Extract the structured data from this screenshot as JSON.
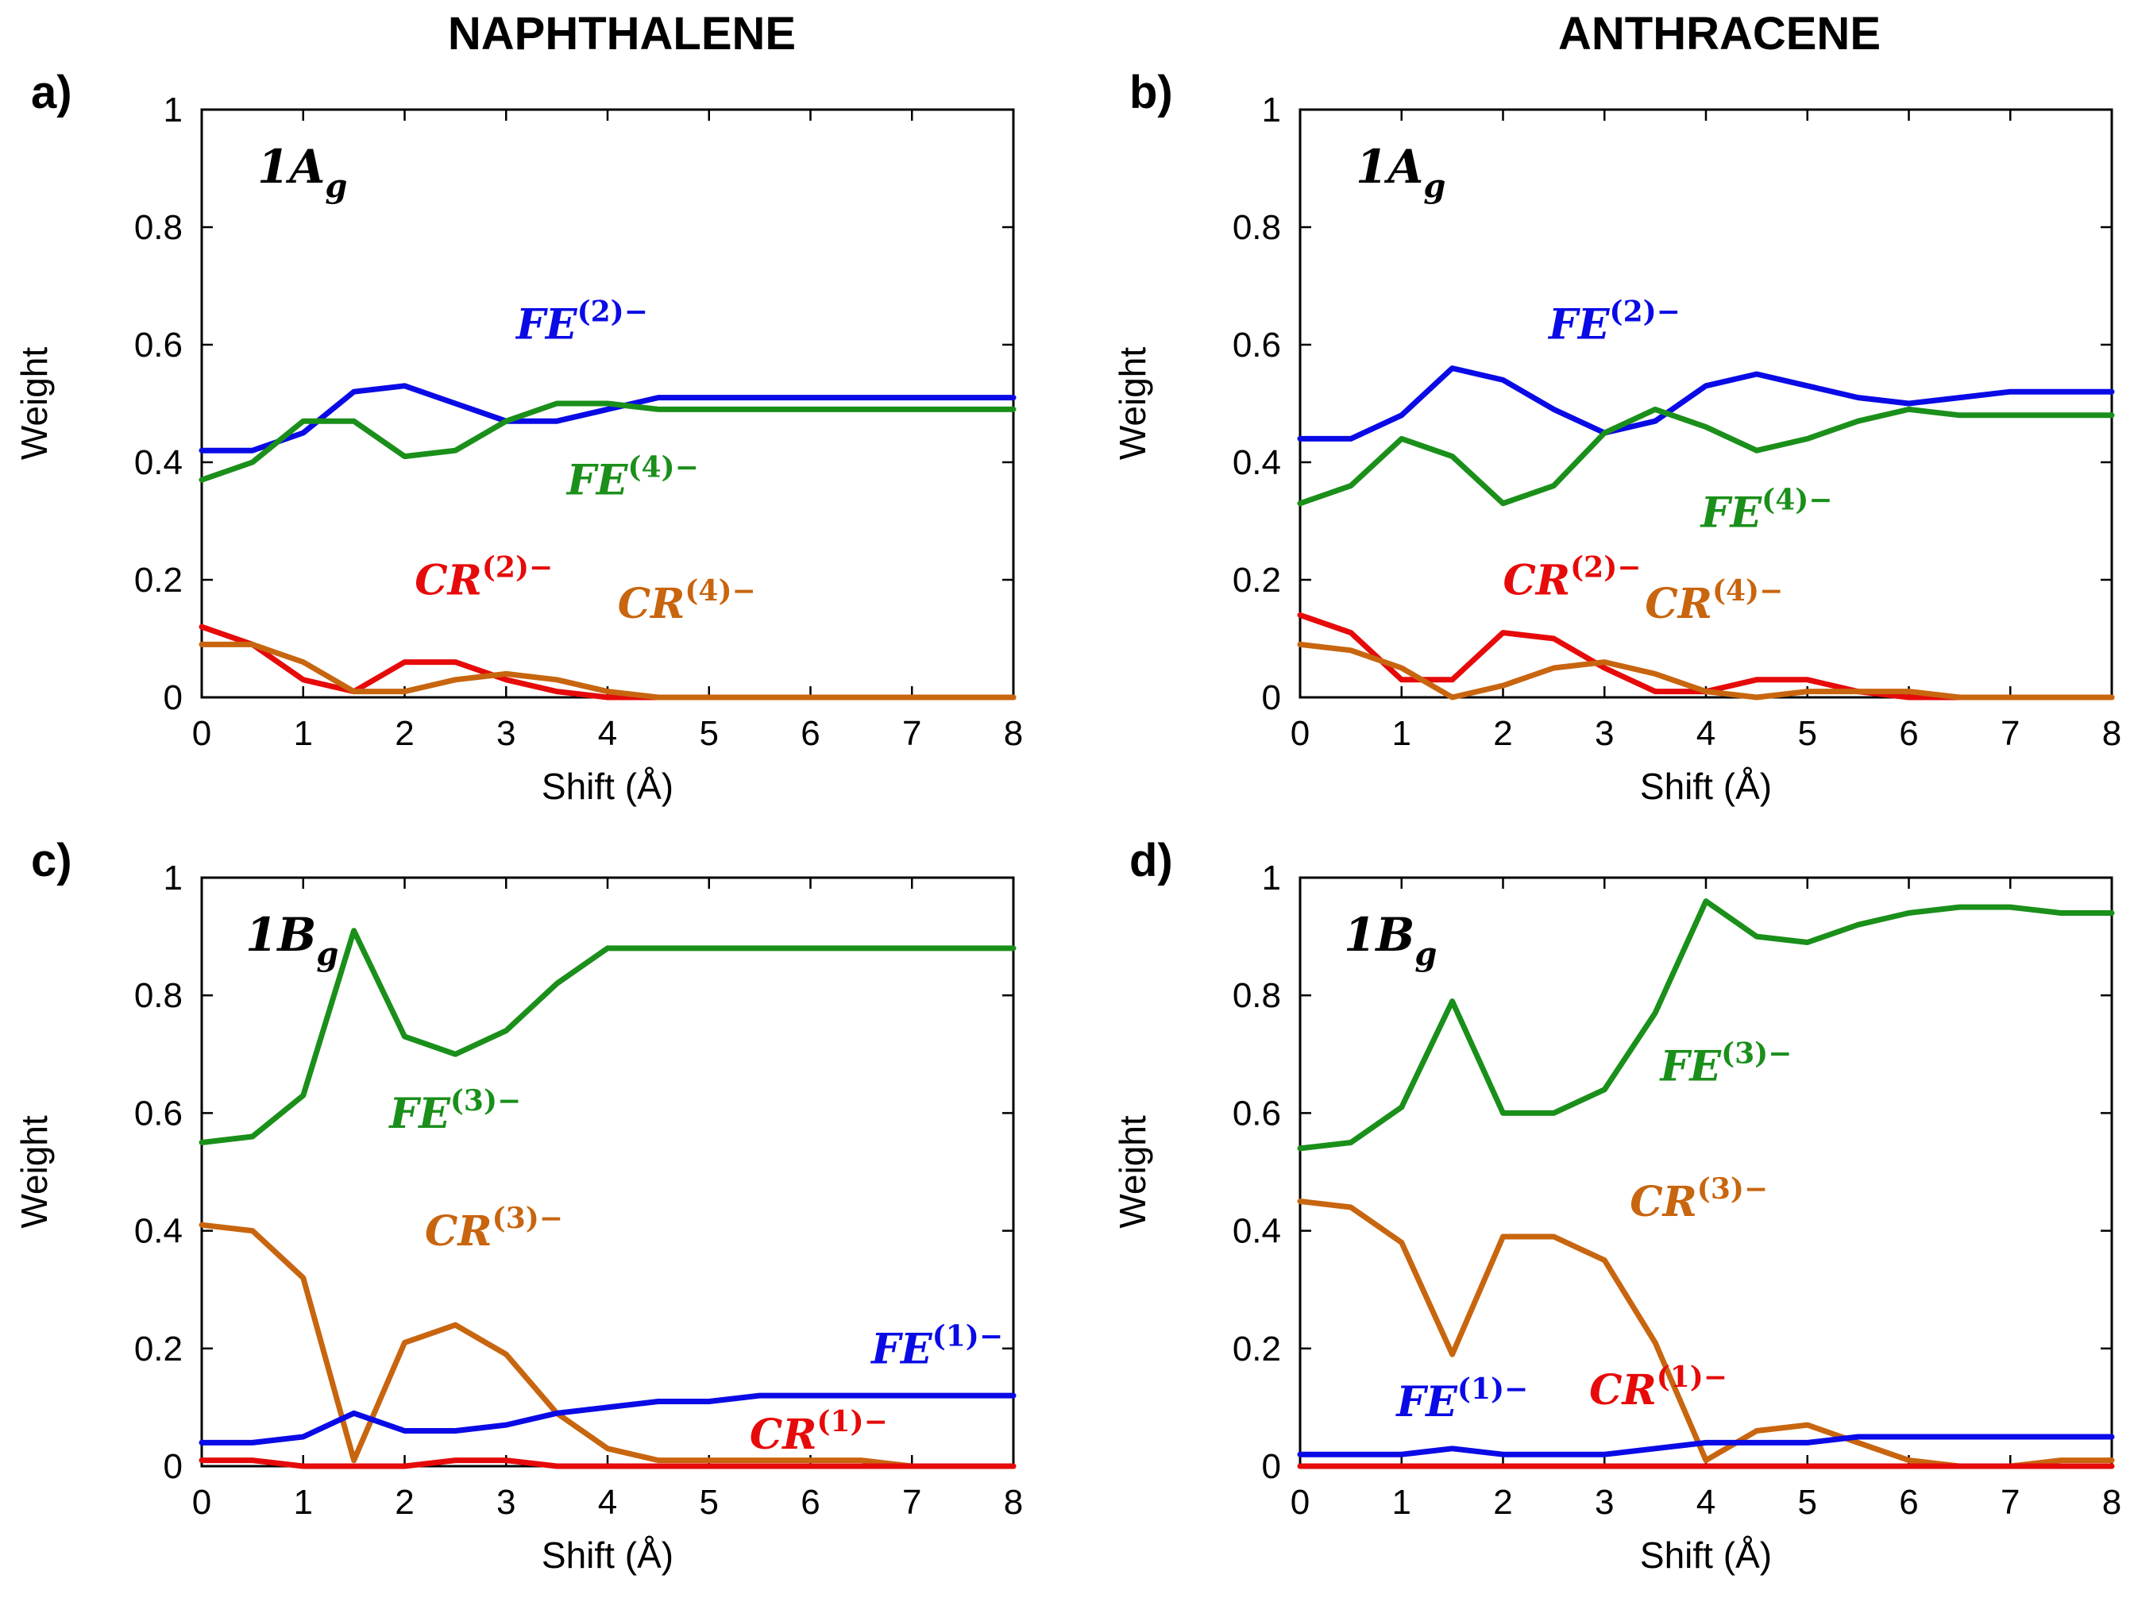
{
  "columns": [
    "NAPHTHALENE",
    "ANTHRACENE"
  ],
  "colors": {
    "FE2": "#0a0ae6",
    "FE4": "#1a8f1a",
    "CR2": "#e60a0a",
    "CR4": "#c8650f",
    "FE3": "#1a8f1a",
    "CR3": "#c8650f",
    "FE1": "#0a0ae6",
    "CR1": "#e60a0a"
  },
  "chart_data": [
    {
      "type": "line",
      "panel": "a)",
      "state": {
        "base": "1A",
        "sub": "g"
      },
      "xlabel": "Shift (Å)",
      "ylabel": "Weight",
      "xlim": [
        0,
        8
      ],
      "ylim": [
        0,
        1
      ],
      "xticks": [
        "0",
        "1",
        "2",
        "3",
        "4",
        "5",
        "6",
        "7",
        "8"
      ],
      "yticks": [
        "0",
        "0.2",
        "0.4",
        "0.6",
        "0.8",
        "1"
      ],
      "x": [
        0,
        0.5,
        1,
        1.5,
        2,
        2.5,
        3,
        3.5,
        4,
        4.5,
        5,
        5.5,
        6,
        6.5,
        7,
        7.5,
        8
      ],
      "series": [
        {
          "key": "FE2",
          "name": "FE(2)−",
          "base": "FE",
          "sup": "(2)−",
          "values": [
            0.42,
            0.42,
            0.45,
            0.52,
            0.53,
            0.5,
            0.47,
            0.47,
            0.49,
            0.51,
            0.51,
            0.51,
            0.51,
            0.51,
            0.51,
            0.51,
            0.51
          ]
        },
        {
          "key": "FE4",
          "name": "FE(4)−",
          "base": "FE",
          "sup": "(4)−",
          "values": [
            0.37,
            0.4,
            0.47,
            0.47,
            0.41,
            0.42,
            0.47,
            0.5,
            0.5,
            0.49,
            0.49,
            0.49,
            0.49,
            0.49,
            0.49,
            0.49,
            0.49
          ]
        },
        {
          "key": "CR2",
          "name": "CR(2)−",
          "base": "CR",
          "sup": "(2)−",
          "values": [
            0.12,
            0.09,
            0.03,
            0.01,
            0.06,
            0.06,
            0.03,
            0.01,
            0.0,
            0.0,
            0.0,
            0.0,
            0.0,
            0.0,
            0.0,
            0.0,
            0.0
          ]
        },
        {
          "key": "CR4",
          "name": "CR(4)−",
          "base": "CR",
          "sup": "(4)−",
          "values": [
            0.09,
            0.09,
            0.06,
            0.01,
            0.01,
            0.03,
            0.04,
            0.03,
            0.01,
            0.0,
            0.0,
            0.0,
            0.0,
            0.0,
            0.0,
            0.0,
            0.0
          ]
        }
      ]
    },
    {
      "type": "line",
      "panel": "b)",
      "state": {
        "base": "1A",
        "sub": "g"
      },
      "xlabel": "Shift (Å)",
      "ylabel": "Weight",
      "xlim": [
        0,
        8
      ],
      "ylim": [
        0,
        1
      ],
      "xticks": [
        "0",
        "1",
        "2",
        "3",
        "4",
        "5",
        "6",
        "7",
        "8"
      ],
      "yticks": [
        "0",
        "0.2",
        "0.4",
        "0.6",
        "0.8",
        "1"
      ],
      "x": [
        0,
        0.5,
        1,
        1.5,
        2,
        2.5,
        3,
        3.5,
        4,
        4.5,
        5,
        5.5,
        6,
        6.5,
        7,
        7.5,
        8
      ],
      "series": [
        {
          "key": "FE2",
          "name": "FE(2)−",
          "base": "FE",
          "sup": "(2)−",
          "values": [
            0.44,
            0.44,
            0.48,
            0.56,
            0.54,
            0.49,
            0.45,
            0.47,
            0.53,
            0.55,
            0.53,
            0.51,
            0.5,
            0.51,
            0.52,
            0.52,
            0.52
          ]
        },
        {
          "key": "FE4",
          "name": "FE(4)−",
          "base": "FE",
          "sup": "(4)−",
          "values": [
            0.33,
            0.36,
            0.44,
            0.41,
            0.33,
            0.36,
            0.45,
            0.49,
            0.46,
            0.42,
            0.44,
            0.47,
            0.49,
            0.48,
            0.48,
            0.48,
            0.48
          ]
        },
        {
          "key": "CR2",
          "name": "CR(2)−",
          "base": "CR",
          "sup": "(2)−",
          "values": [
            0.14,
            0.11,
            0.03,
            0.03,
            0.11,
            0.1,
            0.05,
            0.01,
            0.01,
            0.03,
            0.03,
            0.01,
            0.0,
            0.0,
            0.0,
            0.0,
            0.0
          ]
        },
        {
          "key": "CR4",
          "name": "CR(4)−",
          "base": "CR",
          "sup": "(4)−",
          "values": [
            0.09,
            0.08,
            0.05,
            0.0,
            0.02,
            0.05,
            0.06,
            0.04,
            0.01,
            0.0,
            0.01,
            0.01,
            0.01,
            0.0,
            0.0,
            0.0,
            0.0
          ]
        }
      ]
    },
    {
      "type": "line",
      "panel": "c)",
      "state": {
        "base": "1B",
        "sub": "g"
      },
      "xlabel": "Shift (Å)",
      "ylabel": "Weight",
      "xlim": [
        0,
        8
      ],
      "ylim": [
        0,
        1
      ],
      "xticks": [
        "0",
        "1",
        "2",
        "3",
        "4",
        "5",
        "6",
        "7",
        "8"
      ],
      "yticks": [
        "0",
        "0.2",
        "0.4",
        "0.6",
        "0.8",
        "1"
      ],
      "x": [
        0,
        0.5,
        1,
        1.5,
        2,
        2.5,
        3,
        3.5,
        4,
        4.5,
        5,
        5.5,
        6,
        6.5,
        7,
        7.5,
        8
      ],
      "series": [
        {
          "key": "FE3",
          "name": "FE(3)−",
          "base": "FE",
          "sup": "(3)−",
          "values": [
            0.55,
            0.56,
            0.63,
            0.91,
            0.73,
            0.7,
            0.74,
            0.82,
            0.88,
            0.88,
            0.88,
            0.88,
            0.88,
            0.88,
            0.88,
            0.88,
            0.88
          ]
        },
        {
          "key": "CR3",
          "name": "CR(3)−",
          "base": "CR",
          "sup": "(3)−",
          "values": [
            0.41,
            0.4,
            0.32,
            0.01,
            0.21,
            0.24,
            0.19,
            0.09,
            0.03,
            0.01,
            0.01,
            0.01,
            0.01,
            0.01,
            0.0,
            0.0,
            0.0
          ]
        },
        {
          "key": "FE1",
          "name": "FE(1)−",
          "base": "FE",
          "sup": "(1)−",
          "values": [
            0.04,
            0.04,
            0.05,
            0.09,
            0.06,
            0.06,
            0.07,
            0.09,
            0.1,
            0.11,
            0.11,
            0.12,
            0.12,
            0.12,
            0.12,
            0.12,
            0.12
          ]
        },
        {
          "key": "CR1",
          "name": "CR(1)−",
          "base": "CR",
          "sup": "(1)−",
          "values": [
            0.01,
            0.01,
            0.0,
            0.0,
            0.0,
            0.01,
            0.01,
            0.0,
            0.0,
            0.0,
            0.0,
            0.0,
            0.0,
            0.0,
            0.0,
            0.0,
            0.0
          ]
        }
      ]
    },
    {
      "type": "line",
      "panel": "d)",
      "state": {
        "base": "1B",
        "sub": "g"
      },
      "xlabel": "Shift (Å)",
      "ylabel": "Weight",
      "xlim": [
        0,
        8
      ],
      "ylim": [
        0,
        1
      ],
      "xticks": [
        "0",
        "1",
        "2",
        "3",
        "4",
        "5",
        "6",
        "7",
        "8"
      ],
      "yticks": [
        "0",
        "0.2",
        "0.4",
        "0.6",
        "0.8",
        "1"
      ],
      "x": [
        0,
        0.5,
        1,
        1.5,
        2,
        2.5,
        3,
        3.5,
        4,
        4.5,
        5,
        5.5,
        6,
        6.5,
        7,
        7.5,
        8
      ],
      "series": [
        {
          "key": "FE3",
          "name": "FE(3)−",
          "base": "FE",
          "sup": "(3)−",
          "values": [
            0.54,
            0.55,
            0.61,
            0.79,
            0.6,
            0.6,
            0.64,
            0.77,
            0.96,
            0.9,
            0.89,
            0.92,
            0.94,
            0.95,
            0.95,
            0.94,
            0.94
          ]
        },
        {
          "key": "CR3",
          "name": "CR(3)−",
          "base": "CR",
          "sup": "(3)−",
          "values": [
            0.45,
            0.44,
            0.38,
            0.19,
            0.39,
            0.39,
            0.35,
            0.21,
            0.01,
            0.06,
            0.07,
            0.04,
            0.01,
            0.0,
            0.0,
            0.01,
            0.01
          ]
        },
        {
          "key": "FE1",
          "name": "FE(1)−",
          "base": "FE",
          "sup": "(1)−",
          "values": [
            0.02,
            0.02,
            0.02,
            0.03,
            0.02,
            0.02,
            0.02,
            0.03,
            0.04,
            0.04,
            0.04,
            0.05,
            0.05,
            0.05,
            0.05,
            0.05,
            0.05
          ]
        },
        {
          "key": "CR1",
          "name": "CR(1)−",
          "base": "CR",
          "sup": "(1)−",
          "values": [
            0.0,
            0.0,
            0.0,
            0.0,
            0.0,
            0.0,
            0.0,
            0.0,
            0.0,
            0.0,
            0.0,
            0.0,
            0.0,
            0.0,
            0.0,
            0.0,
            0.0
          ]
        }
      ]
    }
  ]
}
